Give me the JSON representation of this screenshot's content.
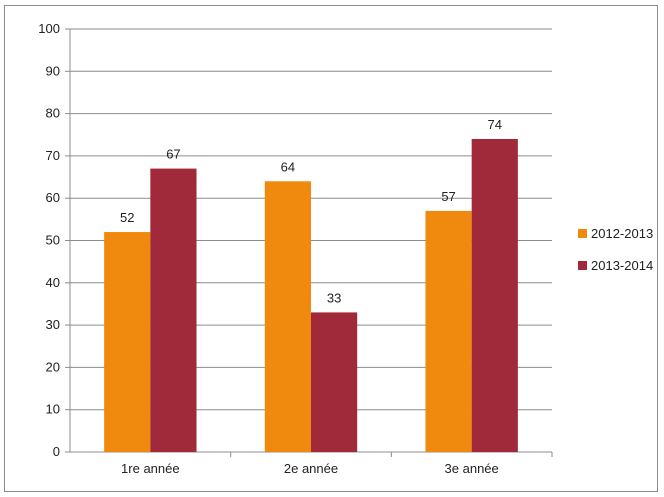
{
  "chart_data": {
    "type": "bar",
    "categories": [
      "1re année",
      "2e année",
      "3e année"
    ],
    "series": [
      {
        "name": "2012-2013",
        "values": [
          52,
          64,
          57
        ],
        "color": "#F08A0E"
      },
      {
        "name": "2013-2014",
        "values": [
          67,
          33,
          74
        ],
        "color": "#A12A3A"
      }
    ],
    "ylim": [
      0,
      100
    ],
    "y_ticks": [
      0,
      10,
      20,
      30,
      40,
      50,
      60,
      70,
      80,
      90,
      100
    ],
    "grid": true,
    "legend_position": "right",
    "data_labels": true
  }
}
